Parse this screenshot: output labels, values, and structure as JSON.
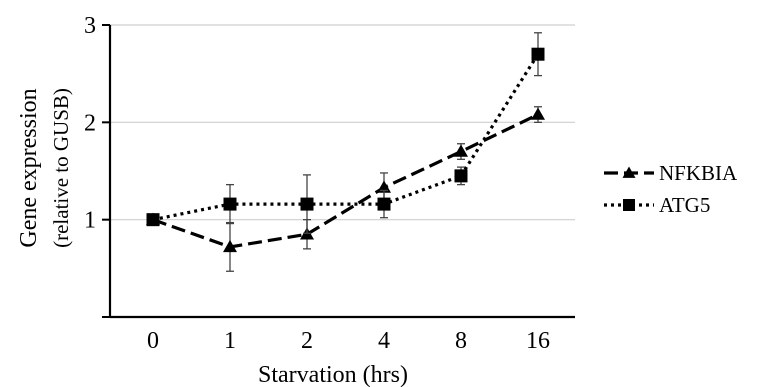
{
  "chart_data": {
    "type": "line",
    "xlabel": "Starvation (hrs)",
    "ylabel_line1": "Gene expression",
    "ylabel_line2": "(relative to GUSB)",
    "categories": [
      "0",
      "1",
      "2",
      "4",
      "8",
      "16"
    ],
    "ylim": [
      0,
      3
    ],
    "yticks": [
      "1",
      "2",
      "3"
    ],
    "grid": "horizontal",
    "legend_position": "right",
    "series": [
      {
        "name": "NFKBIA",
        "marker": "triangle",
        "dash": "dashed",
        "values": [
          1.0,
          0.72,
          0.85,
          1.33,
          1.7,
          2.08
        ],
        "errors": [
          0.0,
          0.25,
          0.15,
          0.15,
          0.08,
          0.08
        ]
      },
      {
        "name": "ATG5",
        "marker": "square",
        "dash": "dotted",
        "values": [
          1.0,
          1.16,
          1.16,
          1.16,
          1.45,
          2.7
        ],
        "errors": [
          0.0,
          0.2,
          0.3,
          0.14,
          0.09,
          0.22
        ]
      }
    ]
  }
}
